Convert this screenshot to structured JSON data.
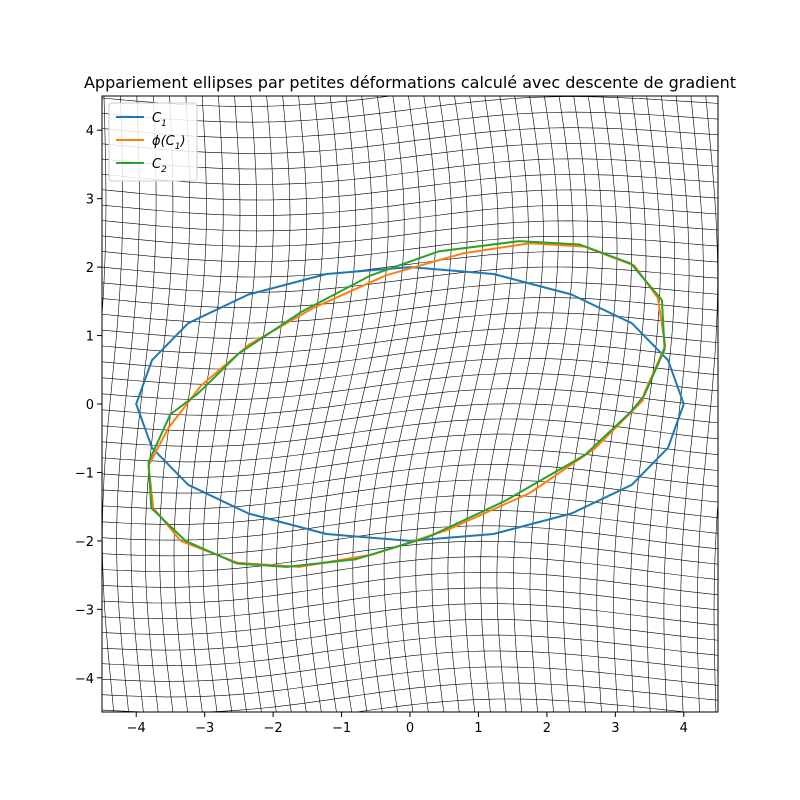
{
  "chart_data": {
    "type": "line",
    "title": "Appariement ellipses par petites déformations calculé avec descente de gradient",
    "xlabel": "",
    "ylabel": "",
    "xlim": [
      -4.5,
      4.5
    ],
    "ylim": [
      -4.5,
      4.5
    ],
    "xticks": [
      -4,
      -3,
      -2,
      -1,
      0,
      1,
      2,
      3,
      4
    ],
    "yticks": [
      -4,
      -3,
      -2,
      -1,
      0,
      1,
      2,
      3,
      4
    ],
    "xtick_labels": [
      "−4",
      "−3",
      "−2",
      "−1",
      "0",
      "1",
      "2",
      "3",
      "4"
    ],
    "ytick_labels": [
      "−4",
      "−3",
      "−2",
      "−1",
      "0",
      "1",
      "2",
      "3",
      "4"
    ],
    "grid": false,
    "background_mesh": "deformed grid",
    "legend_position": "top-left",
    "legend": [
      {
        "label_main": "C",
        "label_sub": "1",
        "label_text": "C1",
        "color": "#1f77b4"
      },
      {
        "label_main": "ϕ(C",
        "label_sub": "1",
        "label_tail": ")",
        "label_text": "ϕ(C1)",
        "color": "#ff7f0e"
      },
      {
        "label_main": "C",
        "label_sub": "2",
        "label_text": "C2",
        "color": "#2ca02c"
      }
    ],
    "series": [
      {
        "name": "C1",
        "color": "#1f77b4",
        "x": [
          4.0,
          3.77,
          3.24,
          2.36,
          1.22,
          0.0,
          -1.22,
          -2.36,
          -3.24,
          -3.77,
          -4.0,
          -3.77,
          -3.24,
          -2.36,
          -1.22,
          0.0,
          1.22,
          2.36,
          3.24,
          3.77,
          4.0
        ],
        "y": [
          0.0,
          0.64,
          1.18,
          1.6,
          1.9,
          2.0,
          1.9,
          1.6,
          1.18,
          0.64,
          0.0,
          -0.64,
          -1.18,
          -1.6,
          -1.9,
          -2.0,
          -1.9,
          -1.6,
          -1.18,
          -0.64,
          0.0
        ]
      },
      {
        "name": "ϕ(C1)",
        "color": "#ff7f0e",
        "x": [
          3.42,
          3.73,
          3.62,
          3.28,
          2.55,
          1.75,
          0.77,
          -0.35,
          -1.42,
          -2.35,
          -3.05,
          -3.53,
          -3.82,
          -3.75,
          -3.35,
          -2.52,
          -1.62,
          -0.55,
          0.55,
          1.75,
          2.7,
          3.4,
          3.42
        ],
        "y": [
          0.15,
          0.85,
          1.55,
          2.02,
          2.3,
          2.35,
          2.2,
          1.88,
          1.4,
          0.87,
          0.27,
          -0.35,
          -0.9,
          -1.52,
          -2.0,
          -2.32,
          -2.38,
          -2.2,
          -1.84,
          -1.3,
          -0.65,
          0.05,
          0.15
        ]
      },
      {
        "name": "C2",
        "color": "#2ca02c",
        "x": [
          3.42,
          3.72,
          3.68,
          3.23,
          2.48,
          1.6,
          0.42,
          -0.57,
          -1.58,
          -2.5,
          -3.1,
          -3.5,
          -3.82,
          -3.78,
          -3.28,
          -2.53,
          -1.8,
          -0.8,
          0.25,
          1.38,
          2.55,
          3.22,
          3.42
        ],
        "y": [
          0.12,
          0.8,
          1.52,
          2.05,
          2.33,
          2.38,
          2.23,
          1.88,
          1.35,
          0.74,
          0.15,
          -0.15,
          -0.85,
          -1.52,
          -2.0,
          -2.33,
          -2.38,
          -2.27,
          -1.95,
          -1.42,
          -0.75,
          -0.12,
          0.12
        ]
      }
    ]
  }
}
